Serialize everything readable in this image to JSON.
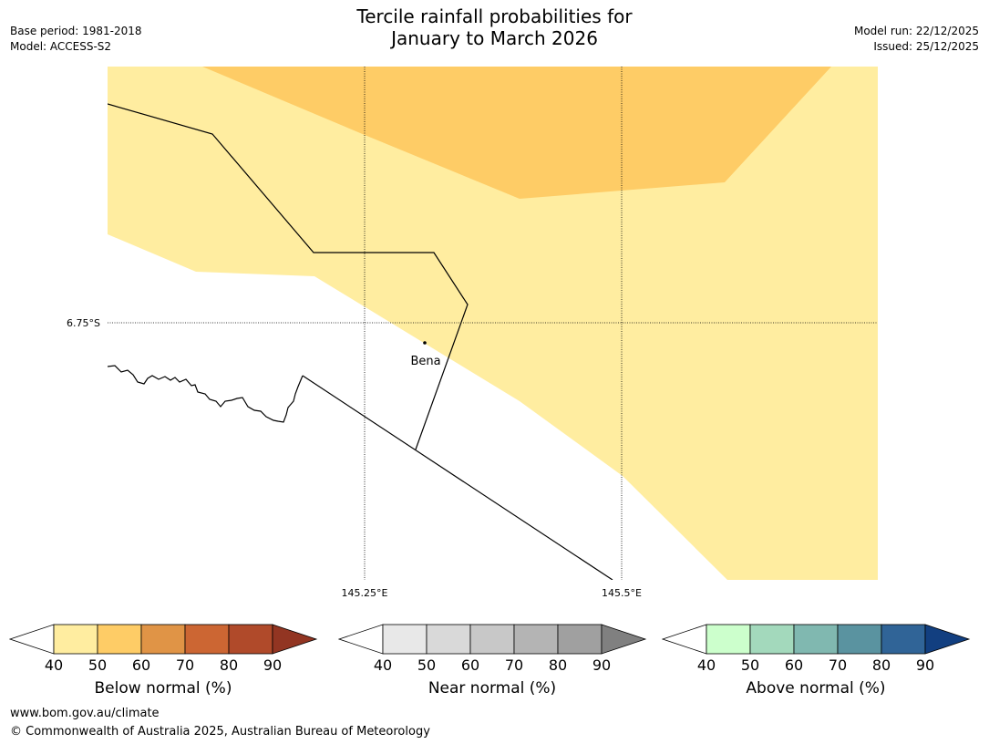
{
  "title": {
    "line1": "Tercile rainfall probabilities for",
    "line2": "January to March 2026"
  },
  "meta": {
    "base_period": "Base period: 1981-2018",
    "model": "Model: ACCESS-S2",
    "model_run": "Model run: 22/12/2025",
    "issued": "Issued: 25/12/2025"
  },
  "map": {
    "lat_label": "6.75°S",
    "lon_labels": [
      "145.25°E",
      "145.5°E"
    ],
    "town": "Bena",
    "colors": {
      "below_40_50": "#ffeda0",
      "below_50_60": "#fecc66",
      "land_line": "#000000"
    }
  },
  "colorbars": [
    {
      "name": "below",
      "title": "Below normal (%)",
      "ticks": [
        "40",
        "50",
        "60",
        "70",
        "80",
        "90"
      ],
      "colors": [
        "#ffffff",
        "#ffeda0",
        "#fecc66",
        "#e09446",
        "#cc6633",
        "#b04a2a",
        "#923522"
      ]
    },
    {
      "name": "near",
      "title": "Near normal (%)",
      "ticks": [
        "40",
        "50",
        "60",
        "70",
        "80",
        "90"
      ],
      "colors": [
        "#ffffff",
        "#e8e8e8",
        "#d9d9d9",
        "#c8c8c8",
        "#b4b4b4",
        "#a0a0a0",
        "#808080"
      ]
    },
    {
      "name": "above",
      "title": "Above normal (%)",
      "ticks": [
        "40",
        "50",
        "60",
        "70",
        "80",
        "90"
      ],
      "colors": [
        "#ffffff",
        "#ccffcc",
        "#a3d9bc",
        "#80b8b0",
        "#5a93a0",
        "#306497",
        "#123f80"
      ]
    }
  ],
  "footer": {
    "url": "www.bom.gov.au/climate",
    "copyright": "© Commonwealth of Australia 2025, Australian Bureau of Meteorology"
  }
}
